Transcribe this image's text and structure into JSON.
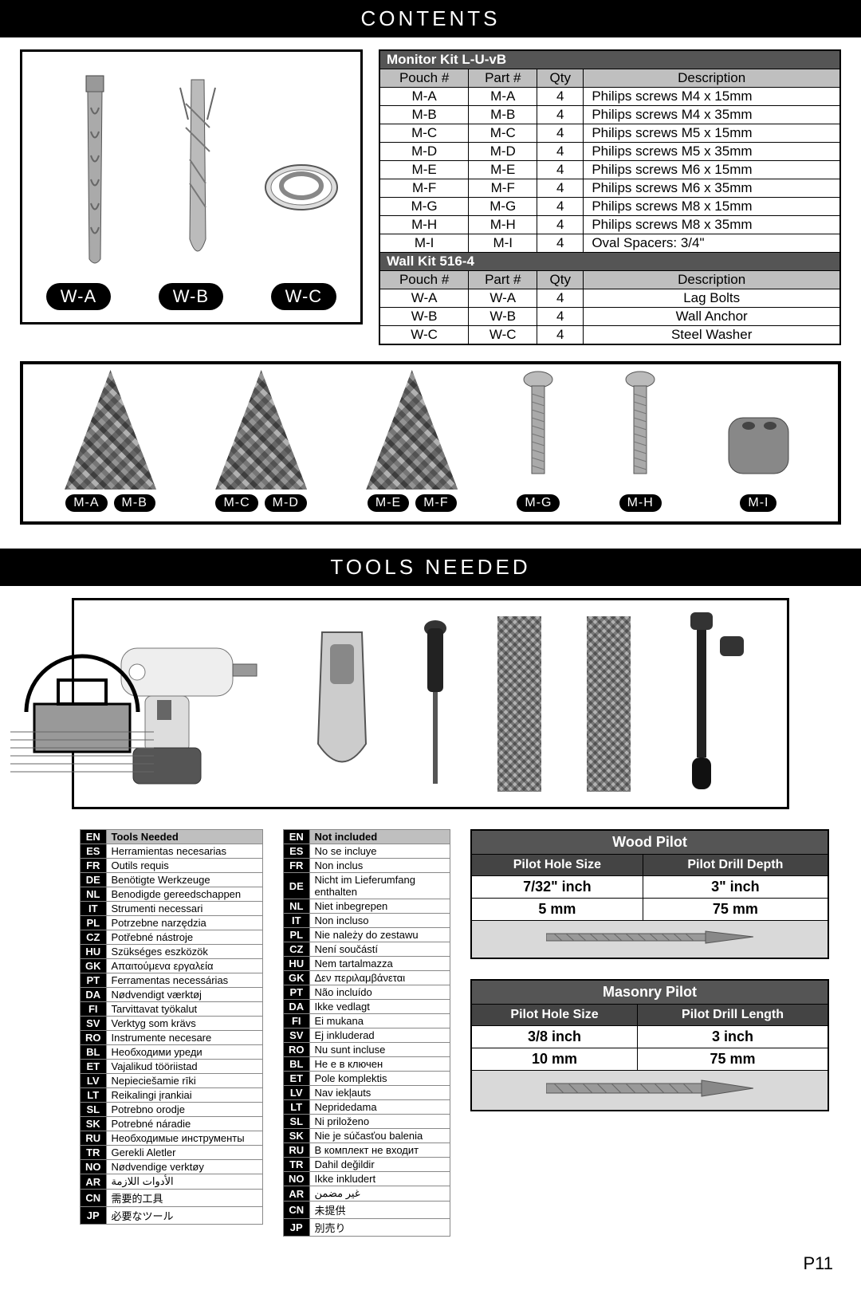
{
  "headers": {
    "contents": "CONTENTS",
    "tools": "TOOLS NEEDED"
  },
  "page_number": "P11",
  "wall_labels": [
    "W-A",
    "W-B",
    "W-C"
  ],
  "monitor_kit": {
    "title": "Monitor Kit L-U-vB",
    "columns": [
      "Pouch #",
      "Part #",
      "Qty",
      "Description"
    ],
    "rows": [
      [
        "M-A",
        "M-A",
        "4",
        "Philips screws M4 x 15mm"
      ],
      [
        "M-B",
        "M-B",
        "4",
        "Philips screws M4 x 35mm"
      ],
      [
        "M-C",
        "M-C",
        "4",
        "Philips screws M5 x 15mm"
      ],
      [
        "M-D",
        "M-D",
        "4",
        "Philips screws M5 x 35mm"
      ],
      [
        "M-E",
        "M-E",
        "4",
        "Philips screws M6 x 15mm"
      ],
      [
        "M-F",
        "M-F",
        "4",
        "Philips screws M6 x 35mm"
      ],
      [
        "M-G",
        "M-G",
        "4",
        "Philips screws M8 x 15mm"
      ],
      [
        "M-H",
        "M-H",
        "4",
        "Philips screws M8 x 35mm"
      ],
      [
        "M-I",
        "M-I",
        "4",
        "Oval Spacers: 3/4\""
      ]
    ]
  },
  "wall_kit": {
    "title": "Wall Kit 516-4",
    "columns": [
      "Pouch #",
      "Part #",
      "Qty",
      "Description"
    ],
    "rows": [
      [
        "W-A",
        "W-A",
        "4",
        "Lag Bolts"
      ],
      [
        "W-B",
        "W-B",
        "4",
        "Wall Anchor"
      ],
      [
        "W-C",
        "W-C",
        "4",
        "Steel Washer"
      ]
    ]
  },
  "strip_labels": [
    "M-A",
    "M-B",
    "M-C",
    "M-D",
    "M-E",
    "M-F",
    "M-G",
    "M-H",
    "M-I"
  ],
  "lang_tools": {
    "header": "Tools Needed",
    "rows": [
      [
        "EN",
        "Tools Needed"
      ],
      [
        "ES",
        "Herramientas necesarias"
      ],
      [
        "FR",
        "Outils requis"
      ],
      [
        "DE",
        "Benötigte Werkzeuge"
      ],
      [
        "NL",
        "Benodigde gereedschappen"
      ],
      [
        "IT",
        "Strumenti necessari"
      ],
      [
        "PL",
        "Potrzebne narzędzia"
      ],
      [
        "CZ",
        "Potřebné nástroje"
      ],
      [
        "HU",
        "Szükséges eszközök"
      ],
      [
        "GK",
        "Απαιτούμενα εργαλεία"
      ],
      [
        "PT",
        "Ferramentas necessárias"
      ],
      [
        "DA",
        "Nødvendigt værktøj"
      ],
      [
        "FI",
        "Tarvittavat työkalut"
      ],
      [
        "SV",
        "Verktyg som krävs"
      ],
      [
        "RO",
        "Instrumente necesare"
      ],
      [
        "BL",
        "Необходими уреди"
      ],
      [
        "ET",
        "Vajalikud tööriistad"
      ],
      [
        "LV",
        "Nepieciešamie rīki"
      ],
      [
        "LT",
        "Reikalingi įrankiai"
      ],
      [
        "SL",
        "Potrebno orodje"
      ],
      [
        "SK",
        "Potrebné náradie"
      ],
      [
        "RU",
        "Необходимые инструменты"
      ],
      [
        "TR",
        "Gerekli Aletler"
      ],
      [
        "NO",
        "Nødvendige verktøy"
      ],
      [
        "AR",
        "الأدوات اللازمة"
      ],
      [
        "CN",
        "需要的工具"
      ],
      [
        "JP",
        "必要なツール"
      ]
    ]
  },
  "lang_notincluded": {
    "header": "Not included",
    "rows": [
      [
        "EN",
        "Not included"
      ],
      [
        "ES",
        "No se incluye"
      ],
      [
        "FR",
        "Non inclus"
      ],
      [
        "DE",
        "Nicht im Lieferumfang enthalten"
      ],
      [
        "NL",
        "Niet inbegrepen"
      ],
      [
        "IT",
        "Non incluso"
      ],
      [
        "PL",
        "Nie należy do zestawu"
      ],
      [
        "CZ",
        "Není součástí"
      ],
      [
        "HU",
        "Nem tartalmazza"
      ],
      [
        "GK",
        "Δεν περιλαμβάνεται"
      ],
      [
        "PT",
        "Não incluído"
      ],
      [
        "DA",
        "Ikke vedlagt"
      ],
      [
        "FI",
        "Ei mukana"
      ],
      [
        "SV",
        "Ej inkluderad"
      ],
      [
        "RO",
        "Nu sunt incluse"
      ],
      [
        "BL",
        "Не е в ключен"
      ],
      [
        "ET",
        "Pole komplektis"
      ],
      [
        "LV",
        "Nav iekļauts"
      ],
      [
        "LT",
        "Nepridedama"
      ],
      [
        "SL",
        "Ni priloženo"
      ],
      [
        "SK",
        "Nie je súčasťou balenia"
      ],
      [
        "RU",
        "В комплект не входит"
      ],
      [
        "TR",
        "Dahil değildir"
      ],
      [
        "NO",
        "Ikke inkludert"
      ],
      [
        "AR",
        "غير مضمن"
      ],
      [
        "CN",
        "未提供"
      ],
      [
        "JP",
        "別売り"
      ]
    ]
  },
  "wood_pilot": {
    "title": "Wood Pilot",
    "col1": "Pilot Hole Size",
    "col2": "Pilot Drill Depth",
    "rows": [
      [
        "7/32\" inch",
        "3\" inch"
      ],
      [
        "5 mm",
        "75 mm"
      ]
    ]
  },
  "masonry_pilot": {
    "title": "Masonry Pilot",
    "col1": "Pilot Hole Size",
    "col2": "Pilot Drill Length",
    "rows": [
      [
        "3/8 inch",
        "3 inch"
      ],
      [
        "10 mm",
        "75 mm"
      ]
    ]
  }
}
